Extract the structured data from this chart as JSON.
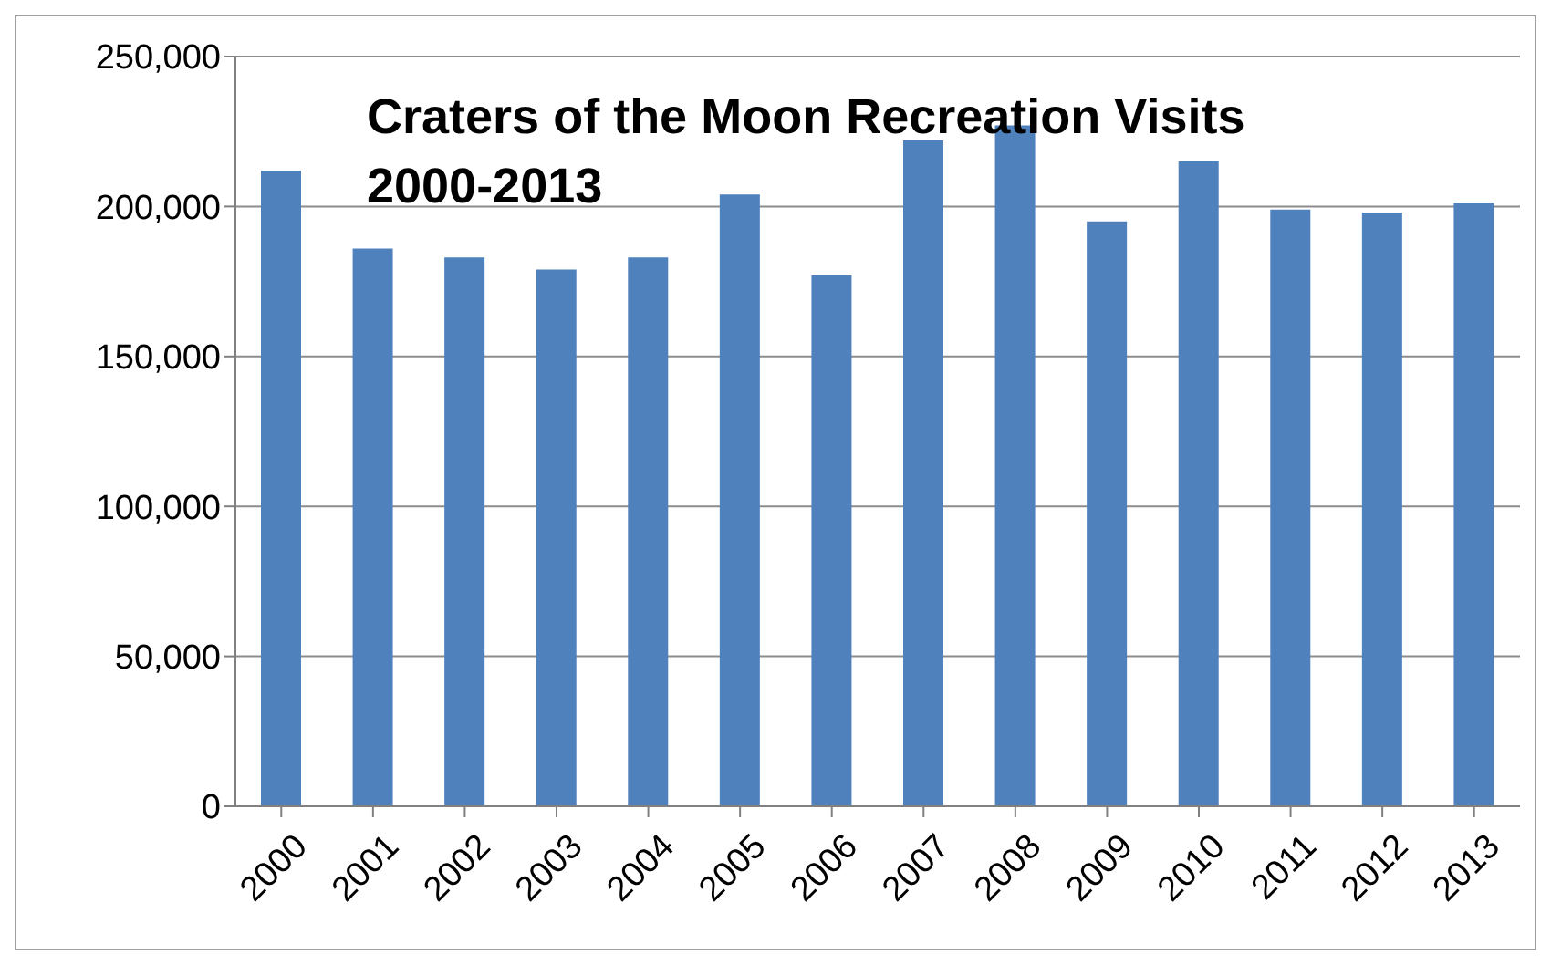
{
  "chart_data": {
    "type": "bar",
    "title": "Craters of the Moon Recreation Visits 2000-2013",
    "categories": [
      "2000",
      "2001",
      "2002",
      "2003",
      "2004",
      "2005",
      "2006",
      "2007",
      "2008",
      "2009",
      "2010",
      "2011",
      "2012",
      "2013"
    ],
    "values": [
      212000,
      186000,
      183000,
      179000,
      183000,
      204000,
      177000,
      222000,
      227000,
      195000,
      215000,
      199000,
      198000,
      201000
    ],
    "color": "#4f81bd",
    "ylim": [
      0,
      250000
    ],
    "yticks": [
      0,
      {
        "value": 50000,
        "label": "50,000"
      },
      {
        "value": 100000,
        "label": "100,000"
      },
      {
        "value": 150000,
        "label": "150,000"
      },
      {
        "value": 200000,
        "label": "200,000"
      },
      {
        "value": 250000,
        "label": "250,000"
      }
    ],
    "grid": "y"
  }
}
